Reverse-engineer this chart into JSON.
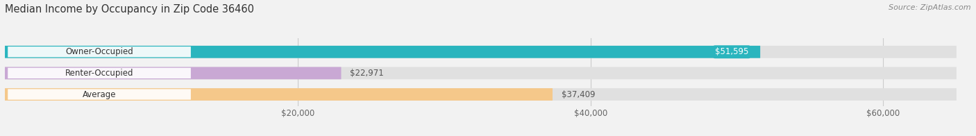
{
  "title": "Median Income by Occupancy in Zip Code 36460",
  "source": "Source: ZipAtlas.com",
  "categories": [
    "Owner-Occupied",
    "Renter-Occupied",
    "Average"
  ],
  "values": [
    51595,
    22971,
    37409
  ],
  "labels": [
    "$51,595",
    "$22,971",
    "$37,409"
  ],
  "bar_colors": [
    "#2ab5be",
    "#c9a8d4",
    "#f5c88a"
  ],
  "background_color": "#f2f2f2",
  "bar_bg_color": "#e0e0e0",
  "xlim": [
    0,
    65000
  ],
  "xticks": [
    20000,
    40000,
    60000
  ],
  "xticklabels": [
    "$20,000",
    "$40,000",
    "$60,000"
  ],
  "figsize": [
    14.06,
    1.96
  ],
  "dpi": 100
}
